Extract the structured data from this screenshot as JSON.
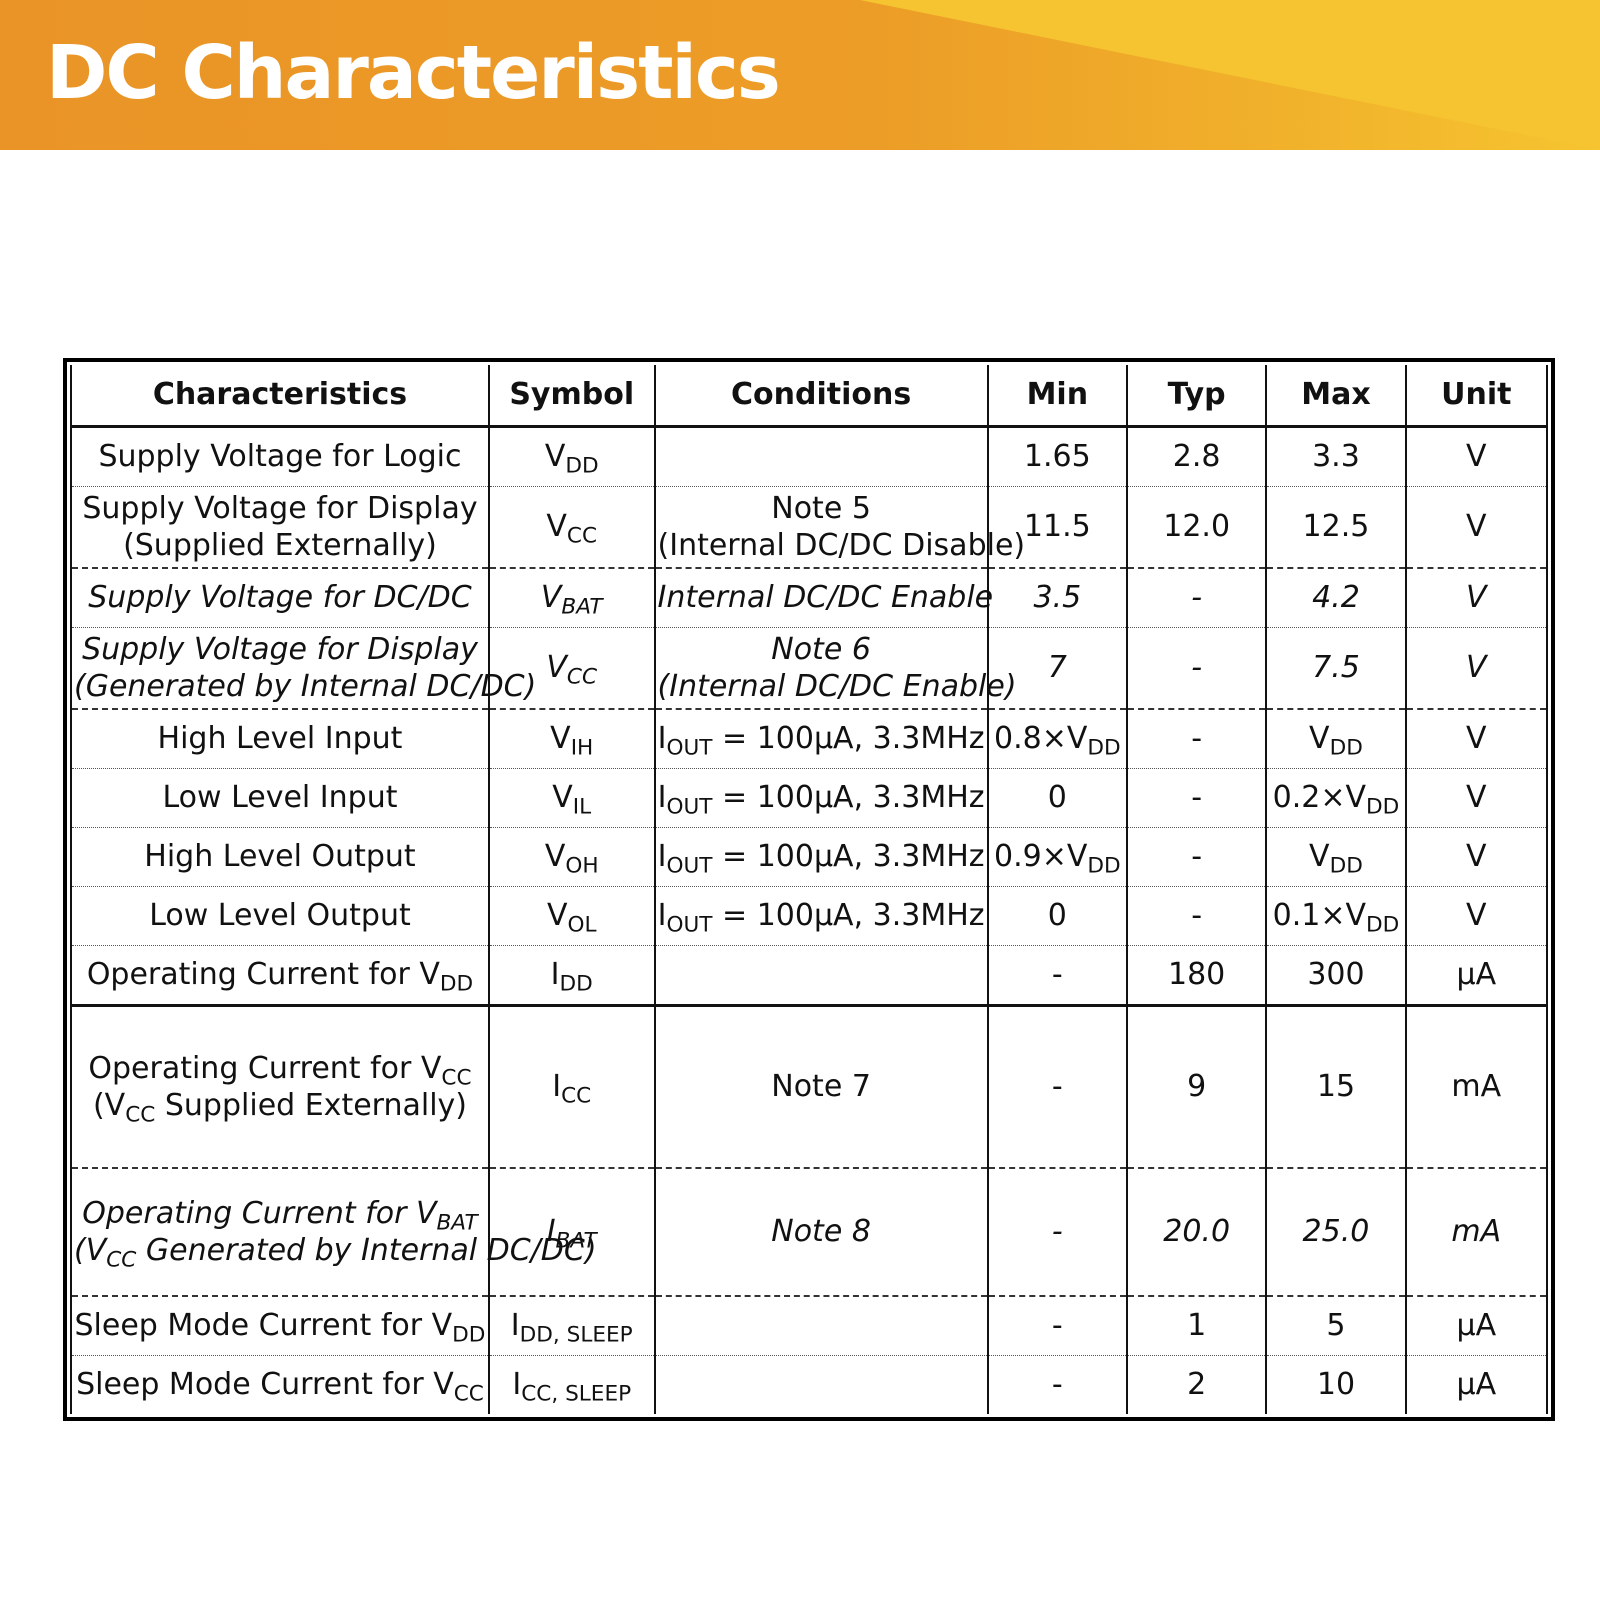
{
  "page_title": "DC Characteristics",
  "table": {
    "headers": [
      "Characteristics",
      "Symbol",
      "Conditions",
      "Min",
      "Typ",
      "Max",
      "Unit"
    ],
    "rows": [
      {
        "characteristics": [
          "Supply Voltage for Logic"
        ],
        "symbol": [
          "V",
          "DD"
        ],
        "conditions": [],
        "min": "1.65",
        "typ": "2.8",
        "max": "3.3",
        "unit": "V"
      },
      {
        "characteristics": [
          "Supply Voltage for Display",
          "(Supplied Externally)"
        ],
        "symbol": [
          "V",
          "CC"
        ],
        "conditions": [
          "Note 5",
          "(Internal DC/DC Disable)"
        ],
        "min": "11.5",
        "typ": "12.0",
        "max": "12.5",
        "unit": "V"
      },
      {
        "characteristics": [
          "Supply Voltage for DC/DC"
        ],
        "symbol": [
          "V",
          "BAT"
        ],
        "conditions": [
          "Internal DC/DC Enable"
        ],
        "min": "3.5",
        "typ": "-",
        "max": "4.2",
        "unit": "V"
      },
      {
        "characteristics": [
          "Supply Voltage for Display",
          "(Generated by Internal DC/DC)"
        ],
        "symbol": [
          "V",
          "CC"
        ],
        "conditions": [
          "Note 6",
          "(Internal DC/DC Enable)"
        ],
        "min": "7",
        "typ": "-",
        "max": "7.5",
        "unit": "V"
      },
      {
        "characteristics": [
          "High Level Input"
        ],
        "symbol": [
          "V",
          "IH"
        ],
        "conditions": [
          "I",
          "OUT",
          " = 100μA, 3.3MHz"
        ],
        "min": [
          "0.8×V",
          "DD"
        ],
        "typ": "-",
        "max": [
          "V",
          "DD"
        ],
        "unit": "V"
      },
      {
        "characteristics": [
          "Low Level Input"
        ],
        "symbol": [
          "V",
          "IL"
        ],
        "conditions": [
          "I",
          "OUT",
          " = 100μA, 3.3MHz"
        ],
        "min": "0",
        "typ": "-",
        "max": [
          "0.2×V",
          "DD"
        ],
        "unit": "V"
      },
      {
        "characteristics": [
          "High Level Output"
        ],
        "symbol": [
          "V",
          "OH"
        ],
        "conditions": [
          "I",
          "OUT",
          " = 100μA, 3.3MHz"
        ],
        "min": [
          "0.9×V",
          "DD"
        ],
        "typ": "-",
        "max": [
          "V",
          "DD"
        ],
        "unit": "V"
      },
      {
        "characteristics": [
          "Low Level Output"
        ],
        "symbol": [
          "V",
          "OL"
        ],
        "conditions": [
          "I",
          "OUT",
          " = 100μA, 3.3MHz"
        ],
        "min": "0",
        "typ": "-",
        "max": [
          "0.1×V",
          "DD"
        ],
        "unit": "V"
      },
      {
        "characteristics": [
          "Operating Current for V",
          "DD"
        ],
        "symbol": [
          "I",
          "DD"
        ],
        "conditions": [],
        "min": "-",
        "typ": "180",
        "max": "300",
        "unit": "μA"
      },
      {
        "characteristics": [
          "Operating Current for V",
          "CC",
          "(V",
          "CC",
          " Supplied Externally)"
        ],
        "symbol": [
          "I",
          "CC"
        ],
        "conditions": [
          "Note 7"
        ],
        "min": "-",
        "typ": "9",
        "max": "15",
        "unit": "mA"
      },
      {
        "characteristics": [
          "Operating Current for V",
          "BAT",
          "(V",
          "CC",
          " Generated by Internal DC/DC)"
        ],
        "symbol": [
          "I",
          "BAT"
        ],
        "conditions": [
          "Note 8"
        ],
        "min": "-",
        "typ": "20.0",
        "max": "25.0",
        "unit": "mA"
      },
      {
        "characteristics": [
          "Sleep Mode Current for V",
          "DD"
        ],
        "symbol": [
          "I",
          "DD, SLEEP"
        ],
        "conditions": [],
        "min": "-",
        "typ": "1",
        "max": "5",
        "unit": "μA"
      },
      {
        "characteristics": [
          "Sleep Mode Current for V",
          "CC"
        ],
        "symbol": [
          "I",
          "CC, SLEEP"
        ],
        "conditions": [],
        "min": "-",
        "typ": "2",
        "max": "10",
        "unit": "μA"
      }
    ]
  }
}
